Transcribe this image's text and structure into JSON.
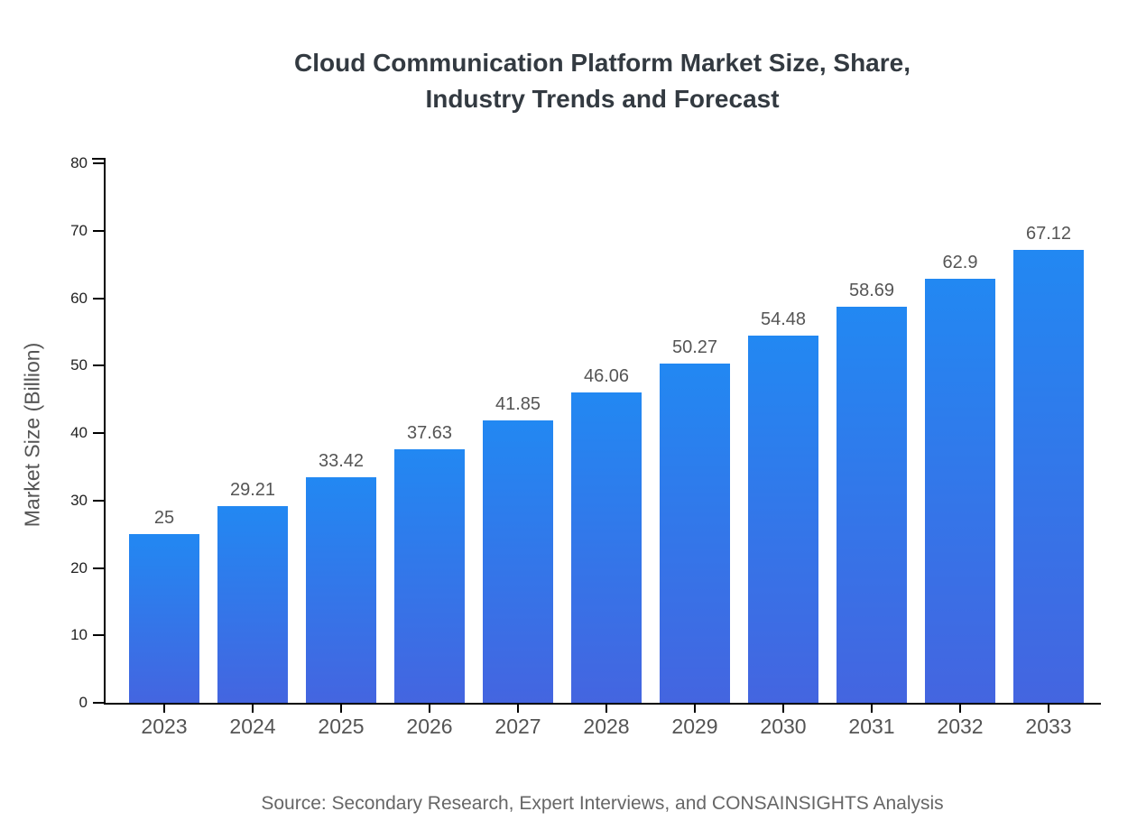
{
  "header": {
    "title_line1": "Cloud Communication Platform Market Size, Share,",
    "title_line2": "Industry Trends and Forecast"
  },
  "chart_data": {
    "type": "bar",
    "title": "Cloud Communication Platform Market Size, Share, Industry Trends and Forecast",
    "categories": [
      "2023",
      "2024",
      "2025",
      "2026",
      "2027",
      "2028",
      "2029",
      "2030",
      "2031",
      "2032",
      "2033"
    ],
    "values": [
      25,
      29.21,
      33.42,
      37.63,
      41.85,
      46.06,
      50.27,
      54.48,
      58.69,
      62.9,
      67.12
    ],
    "value_labels": [
      "25",
      "29.21",
      "33.42",
      "37.63",
      "41.85",
      "46.06",
      "50.27",
      "54.48",
      "58.69",
      "62.9",
      "67.12"
    ],
    "xlabel": "",
    "ylabel": "Market Size (Billion)",
    "ylim": [
      0,
      80
    ],
    "yticks": [
      0,
      10,
      20,
      30,
      40,
      50,
      60,
      70,
      80
    ],
    "grid": false,
    "legend": null,
    "colors": {
      "bar_gradient_top": "#2288f2",
      "bar_gradient_bottom": "#4465e0",
      "value_label": "#555555",
      "axis": "#000000",
      "title": "#333a41",
      "x_tick_label": "#545454",
      "y_tick_label": "#222222",
      "source_text": "#666666"
    }
  },
  "footer": {
    "source": "Source: Secondary Research, Expert Interviews, and CONSAINSIGHTS Analysis"
  }
}
